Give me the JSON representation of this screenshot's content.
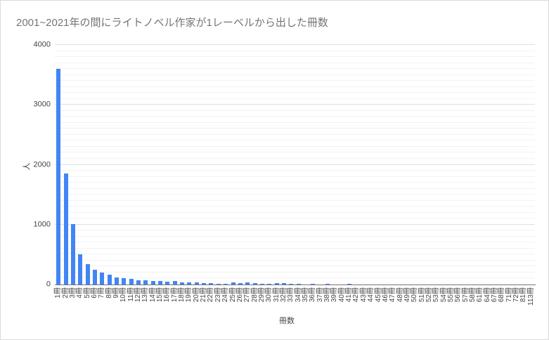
{
  "chart_data": {
    "type": "bar",
    "title": "2001~2021年の間にライトノベル作家が1レーベルから出した冊数",
    "xlabel": "冊数",
    "ylabel": "人",
    "ylim": [
      0,
      4000
    ],
    "y_ticks": [
      0,
      1000,
      2000,
      3000,
      4000
    ],
    "y_major_step": 1000,
    "y_minor_step": 100,
    "grid": true,
    "legend_position": "none",
    "bar_color": "#4285f4",
    "categories": [
      "1冊",
      "2冊",
      "3冊",
      "4冊",
      "5冊",
      "6冊",
      "7冊",
      "8冊",
      "9冊",
      "10冊",
      "11冊",
      "12冊",
      "13冊",
      "14冊",
      "15冊",
      "16冊",
      "17冊",
      "18冊",
      "19冊",
      "20冊",
      "21冊",
      "22冊",
      "23冊",
      "24冊",
      "25冊",
      "26冊",
      "27冊",
      "28冊",
      "29冊",
      "30冊",
      "31冊",
      "32冊",
      "33冊",
      "34冊",
      "35冊",
      "36冊",
      "37冊",
      "38冊",
      "39冊",
      "40冊",
      "41冊",
      "42冊",
      "43冊",
      "44冊",
      "45冊",
      "46冊",
      "47冊",
      "48冊",
      "49冊",
      "50冊",
      "51冊",
      "52冊",
      "53冊",
      "54冊",
      "55冊",
      "56冊",
      "57冊",
      "58冊",
      "61冊",
      "64冊",
      "67冊",
      "68冊",
      "71冊",
      "72冊",
      "81冊",
      "113冊"
    ],
    "values": [
      3600,
      1850,
      1010,
      500,
      340,
      250,
      205,
      160,
      120,
      105,
      95,
      75,
      65,
      58,
      55,
      52,
      60,
      40,
      32,
      30,
      25,
      24,
      16,
      12,
      30,
      28,
      30,
      20,
      12,
      10,
      18,
      20,
      10,
      8,
      6,
      8,
      6,
      8,
      6,
      5,
      8,
      5,
      6,
      4,
      6,
      6,
      4,
      4,
      6,
      6,
      3,
      3,
      3,
      2,
      2,
      2,
      2,
      2,
      1,
      1,
      1,
      1,
      1,
      1,
      1,
      1
    ]
  }
}
